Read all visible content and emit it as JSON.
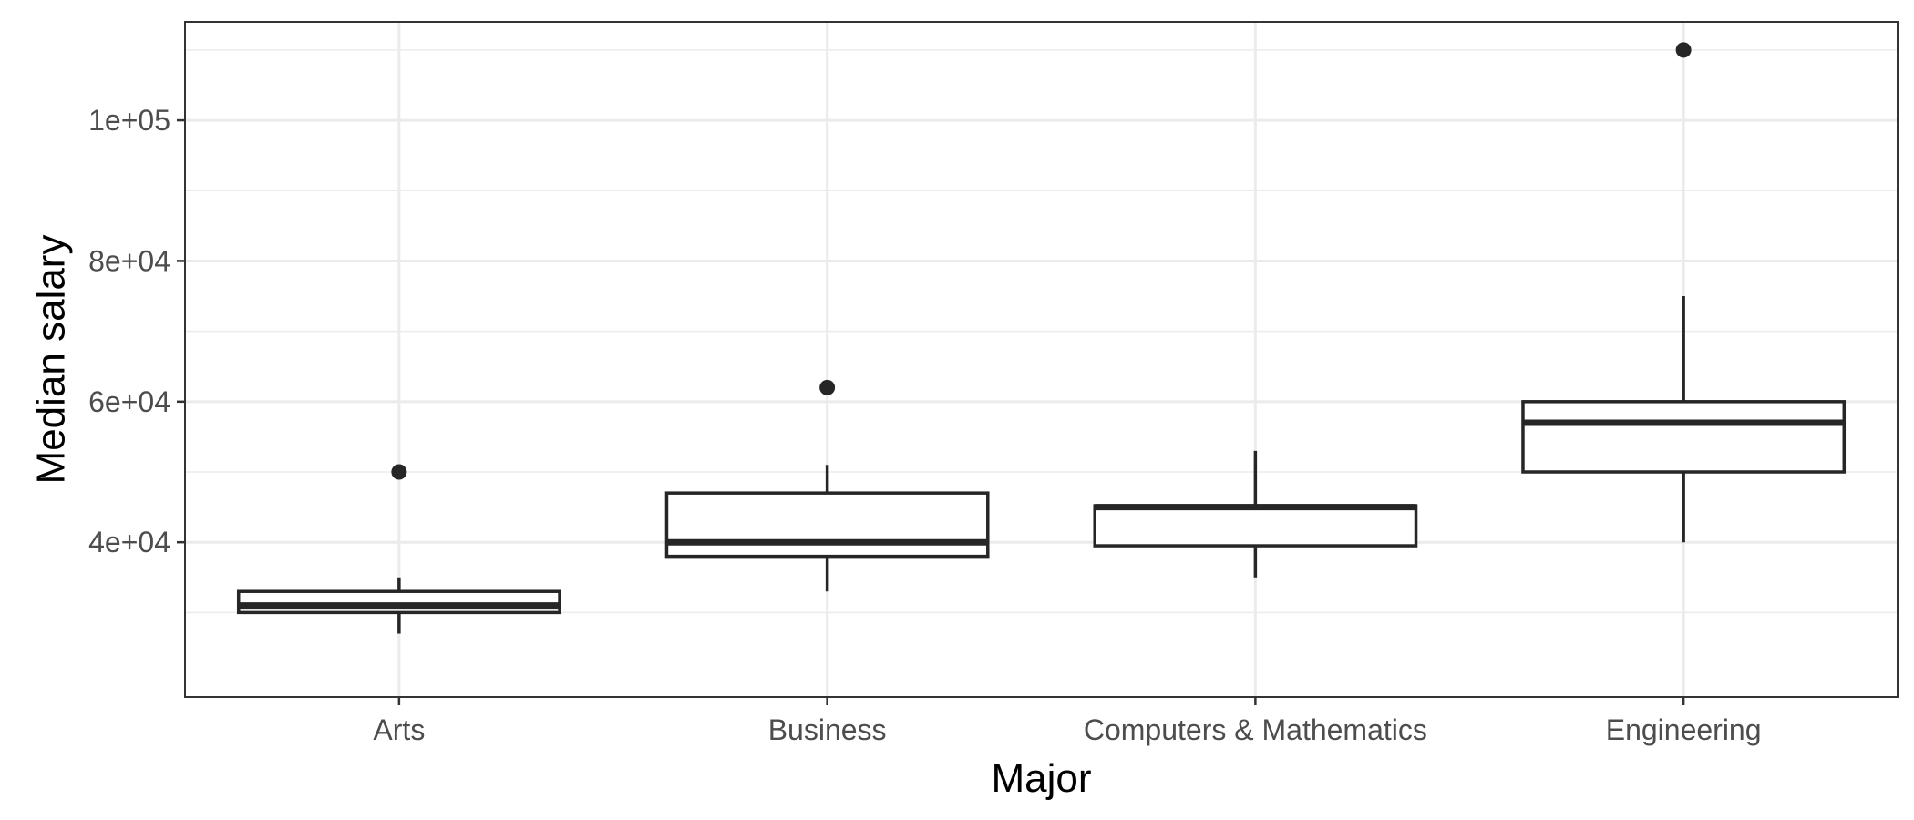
{
  "chart_data": {
    "type": "box",
    "title": "",
    "xlabel": "Major",
    "ylabel": "Median salary",
    "categories": [
      "Arts",
      "Business",
      "Computers & Mathematics",
      "Engineering"
    ],
    "boxes": [
      {
        "category": "Arts",
        "whisker_low": 27000,
        "q1": 30000,
        "median": 31000,
        "q3": 33000,
        "whisker_high": 35000,
        "outliers": [
          50000
        ]
      },
      {
        "category": "Business",
        "whisker_low": 33000,
        "q1": 38000,
        "median": 40000,
        "q3": 47000,
        "whisker_high": 51000,
        "outliers": [
          62000
        ]
      },
      {
        "category": "Computers & Mathematics",
        "whisker_low": 35000,
        "q1": 39500,
        "median": 45000,
        "q3": 45200,
        "whisker_high": 53000,
        "outliers": []
      },
      {
        "category": "Engineering",
        "whisker_low": 40000,
        "q1": 50000,
        "median": 57000,
        "q3": 60000,
        "whisker_high": 75000,
        "outliers": [
          110000
        ]
      }
    ],
    "ylim": [
      18000,
      114000
    ],
    "yticks": [
      40000,
      60000,
      80000,
      100000
    ],
    "ytick_labels": [
      "4e+04",
      "6e+04",
      "8e+04",
      "1e+05"
    ],
    "minor_yticks": [
      30000,
      50000,
      70000,
      90000,
      110000
    ],
    "grid": true,
    "legend": "none",
    "colors": {
      "box_stroke": "#262626",
      "box_fill": "#ffffff",
      "grid": "#ebebeb",
      "panel_border": "#333333",
      "tick_text": "#4d4d4d",
      "title_text": "#000000"
    }
  }
}
